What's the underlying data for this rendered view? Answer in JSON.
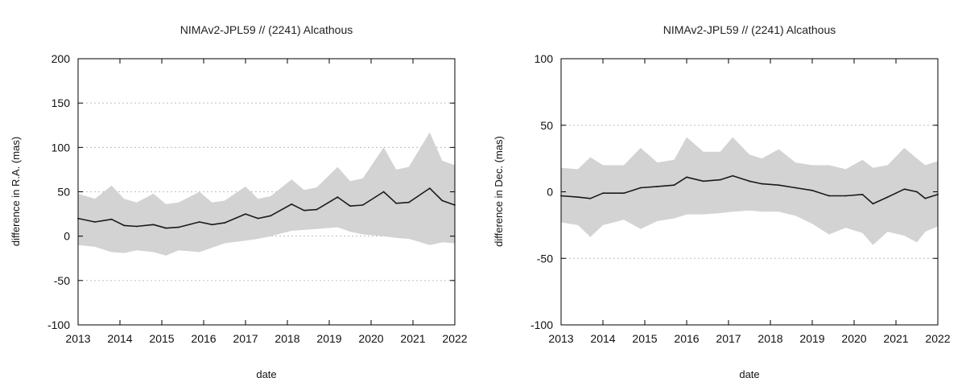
{
  "colors": {
    "band": "#d3d3d3",
    "line": "#1a1a1a"
  },
  "chart_data": [
    {
      "type": "line",
      "title": "NIMAv2-JPL59 // (2241) Alcathous",
      "xlabel": "date",
      "ylabel": "difference in R.A. (mas)",
      "xlim": [
        2013,
        2022
      ],
      "ylim": [
        -100,
        200
      ],
      "xticks": [
        2013,
        2014,
        2015,
        2016,
        2017,
        2018,
        2019,
        2020,
        2021,
        2022
      ],
      "yticks": [
        -100,
        -50,
        0,
        50,
        100,
        150,
        200
      ],
      "grid": true,
      "series": [
        {
          "kind": "line",
          "x": [
            2013.0,
            2013.4,
            2013.8,
            2014.1,
            2014.4,
            2014.8,
            2015.1,
            2015.4,
            2015.9,
            2016.2,
            2016.5,
            2017.0,
            2017.3,
            2017.6,
            2018.1,
            2018.4,
            2018.7,
            2019.2,
            2019.5,
            2019.8,
            2020.3,
            2020.6,
            2020.9,
            2021.4,
            2021.7,
            2022.0
          ],
          "values": [
            20,
            16,
            19,
            12,
            11,
            13,
            9,
            10,
            16,
            13,
            15,
            25,
            20,
            23,
            36,
            29,
            30,
            44,
            34,
            35,
            50,
            37,
            38,
            54,
            40,
            35
          ]
        },
        {
          "kind": "band",
          "x": [
            2013.0,
            2013.4,
            2013.8,
            2014.1,
            2014.4,
            2014.8,
            2015.1,
            2015.4,
            2015.9,
            2016.2,
            2016.5,
            2017.0,
            2017.3,
            2017.6,
            2018.1,
            2018.4,
            2018.7,
            2019.2,
            2019.5,
            2019.8,
            2020.3,
            2020.6,
            2020.9,
            2021.4,
            2021.7,
            2022.0
          ],
          "upper": [
            48,
            42,
            57,
            42,
            38,
            48,
            36,
            38,
            50,
            38,
            40,
            56,
            42,
            45,
            64,
            52,
            55,
            78,
            62,
            65,
            100,
            75,
            78,
            117,
            85,
            80
          ],
          "lower": [
            -10,
            -12,
            -18,
            -19,
            -16,
            -18,
            -22,
            -16,
            -18,
            -13,
            -8,
            -5,
            -3,
            0,
            6,
            7,
            8,
            10,
            5,
            2,
            0,
            -2,
            -3,
            -10,
            -7,
            -8
          ]
        }
      ]
    },
    {
      "type": "line",
      "title": "NIMAv2-JPL59 // (2241) Alcathous",
      "xlabel": "date",
      "ylabel": "difference in Dec. (mas)",
      "xlim": [
        2013,
        2022
      ],
      "ylim": [
        -100,
        100
      ],
      "xticks": [
        2013,
        2014,
        2015,
        2016,
        2017,
        2018,
        2019,
        2020,
        2021,
        2022
      ],
      "yticks": [
        -100,
        -50,
        0,
        50,
        100
      ],
      "grid": true,
      "series": [
        {
          "kind": "line",
          "x": [
            2013.0,
            2013.4,
            2013.7,
            2014.0,
            2014.5,
            2014.9,
            2015.3,
            2015.7,
            2016.0,
            2016.4,
            2016.8,
            2017.1,
            2017.5,
            2017.8,
            2018.2,
            2018.6,
            2019.0,
            2019.4,
            2019.8,
            2020.2,
            2020.45,
            2020.8,
            2021.2,
            2021.5,
            2021.7,
            2022.0
          ],
          "values": [
            -3,
            -4,
            -5,
            -1,
            -1,
            3,
            4,
            5,
            11,
            8,
            9,
            12,
            8,
            6,
            5,
            3,
            1,
            -3,
            -3,
            -2,
            -9,
            -4,
            2,
            0,
            -5,
            -2
          ]
        },
        {
          "kind": "band",
          "x": [
            2013.0,
            2013.4,
            2013.7,
            2014.0,
            2014.5,
            2014.9,
            2015.3,
            2015.7,
            2016.0,
            2016.4,
            2016.8,
            2017.1,
            2017.5,
            2017.8,
            2018.2,
            2018.6,
            2019.0,
            2019.4,
            2019.8,
            2020.2,
            2020.45,
            2020.8,
            2021.2,
            2021.5,
            2021.7,
            2022.0
          ],
          "upper": [
            18,
            17,
            26,
            20,
            20,
            33,
            22,
            24,
            41,
            30,
            30,
            41,
            28,
            25,
            32,
            22,
            20,
            20,
            17,
            24,
            18,
            20,
            33,
            25,
            20,
            23
          ],
          "lower": [
            -23,
            -25,
            -34,
            -25,
            -21,
            -28,
            -22,
            -20,
            -17,
            -17,
            -16,
            -15,
            -14,
            -15,
            -15,
            -18,
            -24,
            -32,
            -27,
            -31,
            -40,
            -30,
            -33,
            -38,
            -30,
            -26
          ]
        }
      ]
    }
  ]
}
